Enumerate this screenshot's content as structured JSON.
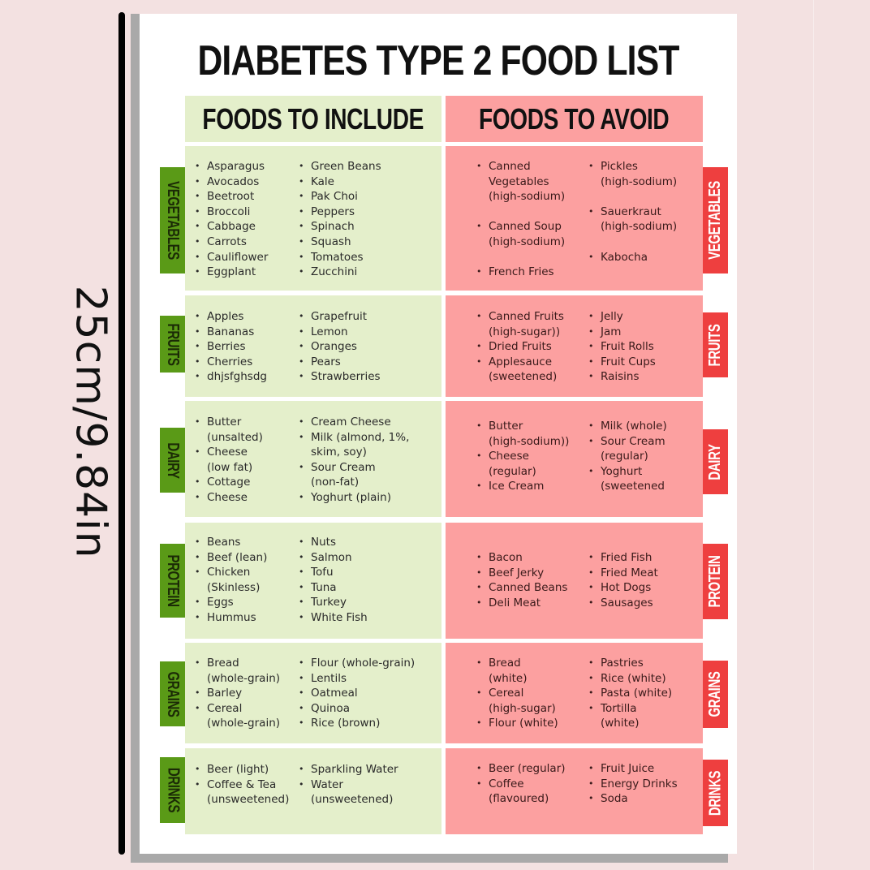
{
  "dimension_label": "25cm/9.84in",
  "title": "DIABETES TYPE 2 FOOD LIST",
  "columns": {
    "include": "FOODS TO INCLUDE",
    "avoid": "FOODS TO AVOID"
  },
  "colors": {
    "include_bg": "#e4efcb",
    "avoid_bg": "#fca0a0",
    "include_tab": "#5a9a17",
    "avoid_tab": "#ee3f3f",
    "page_bg": "#f3e1e1"
  },
  "sections": [
    {
      "name": "VEGETABLES",
      "include": [
        [
          "Asparagus",
          "Avocados",
          "Beetroot",
          "Broccoli",
          "Cabbage",
          "Carrots",
          "Cauliflower",
          "Eggplant"
        ],
        [
          "Green Beans",
          "Kale",
          "Pak Choi",
          "Peppers",
          "Spinach",
          "Squash",
          "Tomatoes",
          "Zucchini"
        ]
      ],
      "avoid": [
        [
          "Canned Vegetables (high-sodium)",
          "Canned Soup (high-sodium)",
          "French Fries"
        ],
        [
          "Pickles (high-sodium)",
          "Sauerkraut (high-sodium)",
          "Kabocha"
        ]
      ]
    },
    {
      "name": "FRUITS",
      "include": [
        [
          "Apples",
          "Bananas",
          "Berries",
          "Cherries",
          "dhjsfghsdg"
        ],
        [
          "Grapefruit",
          "Lemon",
          "Oranges",
          "Pears",
          "Strawberries"
        ]
      ],
      "avoid": [
        [
          "Canned Fruits (high-sugar))",
          "Dried Fruits",
          "Applesauce (sweetened)"
        ],
        [
          "Jelly",
          "Jam",
          "Fruit Rolls",
          "Fruit Cups",
          "Raisins"
        ]
      ]
    },
    {
      "name": "DAIRY",
      "include": [
        [
          "Butter (unsalted)",
          "Cheese (low fat)",
          "Cottage",
          "Cheese"
        ],
        [
          "Cream Cheese",
          "Milk (almond, 1%, skim, soy)",
          "Sour Cream (non-fat)",
          "Yoghurt (plain)"
        ]
      ],
      "avoid": [
        [
          "Butter (high-sodium))",
          "Cheese (regular)",
          "Ice Cream"
        ],
        [
          "Milk (whole)",
          "Sour Cream (regular)",
          "Yoghurt (sweetened"
        ]
      ]
    },
    {
      "name": "PROTEIN",
      "include": [
        [
          "Beans",
          "Beef (lean)",
          "Chicken (Skinless)",
          "Eggs",
          "Hummus"
        ],
        [
          "Nuts",
          "Salmon",
          "Tofu",
          "Tuna",
          "Turkey",
          "White Fish"
        ]
      ],
      "avoid": [
        [
          "Bacon",
          "Beef Jerky",
          "Canned Beans",
          "Deli Meat"
        ],
        [
          "Fried Fish",
          "Fried Meat",
          "Hot Dogs",
          "Sausages"
        ]
      ]
    },
    {
      "name": "GRAINS",
      "include": [
        [
          "Bread (whole-grain)",
          "Barley",
          "Cereal (whole-grain)"
        ],
        [
          "Flour (whole-grain)",
          "Lentils",
          "Oatmeal",
          "Quinoa",
          "Rice (brown)"
        ]
      ],
      "avoid": [
        [
          "Bread (white)",
          "Cereal (high-sugar)",
          "Flour (white)"
        ],
        [
          "Pastries",
          "Rice (white)",
          "Pasta (white)",
          "Tortilla (white)"
        ]
      ]
    },
    {
      "name": "DRINKS",
      "include": [
        [
          "Beer (light)",
          "Coffee & Tea (unsweetened)"
        ],
        [
          "Sparkling Water",
          "Water (unsweetened)"
        ]
      ],
      "avoid": [
        [
          "Beer (regular)",
          "Coffee (flavoured)"
        ],
        [
          "Fruit Juice",
          "Energy Drinks",
          "Soda"
        ]
      ]
    }
  ]
}
